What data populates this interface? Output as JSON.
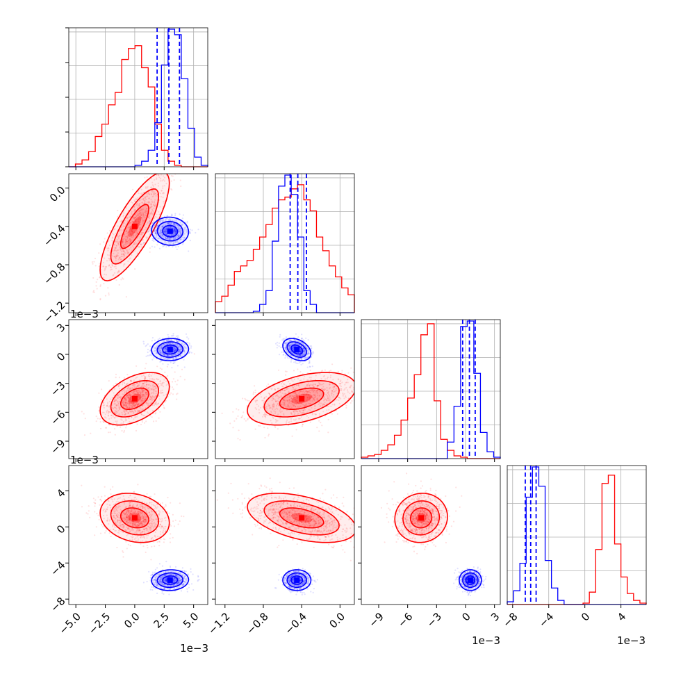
{
  "chart_data": {
    "type": "corner",
    "colors": {
      "red": "#ff0000",
      "blue": "#0000ff"
    },
    "grid": true,
    "offset_text": "1e−3",
    "params": [
      {
        "range": [
          -5.6,
          6.2
        ],
        "ticks": [
          -5.0,
          -2.5,
          0.0,
          2.5,
          5.0
        ],
        "tick_labels": [
          "−5.0",
          "−2.5",
          "0.0",
          "2.5",
          "5.0"
        ]
      },
      {
        "range": [
          -1.3,
          0.15
        ],
        "ticks": [
          -1.2,
          -0.8,
          -0.4,
          0.0
        ],
        "tick_labels": [
          "−1.2",
          "−0.8",
          "−0.4",
          "0.0"
        ]
      },
      {
        "range": [
          -10.8,
          3.6
        ],
        "ticks": [
          -9,
          -6,
          -3,
          0,
          3
        ],
        "tick_labels": [
          "−9",
          "−6",
          "−3",
          "0",
          "3"
        ]
      },
      {
        "range": [
          -8.6,
          6.8
        ],
        "ticks": [
          -8,
          -4,
          0,
          4
        ],
        "tick_labels": [
          "−8",
          "−4",
          "0",
          "4"
        ]
      }
    ],
    "red_marginals": [
      [
        0.0,
        0.02,
        0.05,
        0.11,
        0.22,
        0.31,
        0.45,
        0.54,
        0.78,
        0.86,
        0.88,
        0.72,
        0.58,
        0.31,
        0.12,
        0.04,
        0.01,
        0.0,
        0.0,
        0.0,
        0.0
      ],
      [
        0.08,
        0.12,
        0.2,
        0.3,
        0.34,
        0.38,
        0.46,
        0.55,
        0.64,
        0.76,
        0.82,
        0.84,
        0.9,
        0.93,
        0.82,
        0.74,
        0.55,
        0.45,
        0.34,
        0.26,
        0.18,
        0.13
      ],
      [
        0.01,
        0.02,
        0.03,
        0.06,
        0.1,
        0.17,
        0.28,
        0.44,
        0.61,
        0.9,
        0.98,
        0.42,
        0.14,
        0.06,
        0.02,
        0.01,
        0.0,
        0.0,
        0.0,
        0.0,
        0.0
      ],
      [
        0.0,
        0.0,
        0.0,
        0.0,
        0.0,
        0.0,
        0.0,
        0.0,
        0.0,
        0.0,
        0.0,
        0.0,
        0.01,
        0.09,
        0.4,
        0.88,
        0.94,
        0.44,
        0.2,
        0.08,
        0.03,
        0.01
      ]
    ],
    "blue_marginals": [
      [
        0.0,
        0.0,
        0.0,
        0.0,
        0.0,
        0.0,
        0.0,
        0.0,
        0.0,
        0.0,
        0.01,
        0.04,
        0.12,
        0.32,
        0.74,
        1.0,
        0.96,
        0.64,
        0.28,
        0.07,
        0.01
      ],
      [
        0.0,
        0.0,
        0.0,
        0.0,
        0.0,
        0.0,
        0.01,
        0.06,
        0.16,
        0.52,
        0.92,
        1.0,
        0.86,
        0.55,
        0.16,
        0.06,
        0.0,
        0.0,
        0.0,
        0.0,
        0.0,
        0.0
      ],
      [
        0.0,
        0.0,
        0.0,
        0.0,
        0.0,
        0.0,
        0.0,
        0.0,
        0.0,
        0.0,
        0.0,
        0.0,
        0.0,
        0.12,
        0.38,
        0.96,
        1.0,
        0.62,
        0.19,
        0.05,
        0.01
      ],
      [
        0.02,
        0.1,
        0.3,
        0.78,
        1.0,
        0.86,
        0.32,
        0.12,
        0.03,
        0.0,
        0.0,
        0.0,
        0.0,
        0.0,
        0.0,
        0.0,
        0.0,
        0.0,
        0.0,
        0.0,
        0.0,
        0.0
      ]
    ],
    "blue_quantiles": [
      [
        1.9,
        2.9,
        3.8
      ],
      [
        -0.52,
        -0.44,
        -0.35
      ],
      [
        -0.3,
        0.4,
        1.0
      ],
      [
        -6.6,
        -6.0,
        -5.4
      ]
    ],
    "red_means": [
      0.0,
      -0.4,
      -4.6,
      1.0
    ],
    "red_sds": [
      1.4,
      0.27,
      1.3,
      1.3
    ],
    "blue_means": [
      3.0,
      -0.45,
      0.5,
      -5.9
    ],
    "blue_sds": [
      0.75,
      0.07,
      0.55,
      0.55
    ],
    "red_corr": [
      [
        1,
        0.8,
        0.45,
        -0.2
      ],
      [
        0.8,
        1,
        0.45,
        -0.45
      ],
      [
        0.45,
        0.45,
        1,
        0.05
      ],
      [
        -0.2,
        -0.45,
        0.05,
        1
      ]
    ],
    "blue_corr": [
      [
        1,
        -0.05,
        0.05,
        0.05
      ],
      [
        -0.05,
        1,
        -0.35,
        0.0
      ],
      [
        0.05,
        -0.35,
        1,
        0.0
      ],
      [
        0.05,
        0.0,
        0.0,
        1
      ]
    ]
  }
}
